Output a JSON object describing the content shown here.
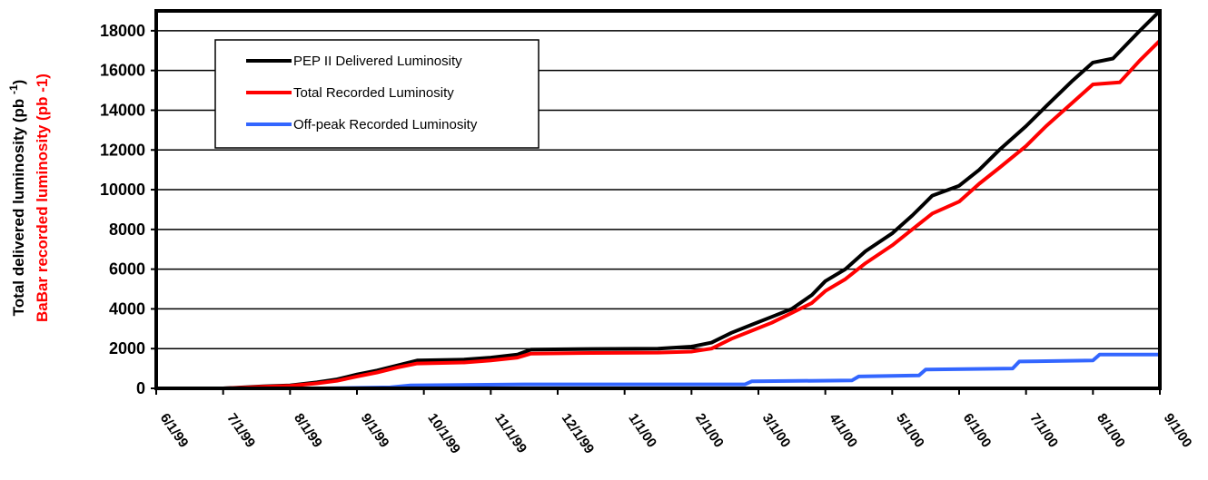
{
  "chart_data": {
    "type": "line",
    "title": "",
    "ylabel_lines": [
      {
        "text": "Total delivered  luminosity (pb",
        "superscript": "-1",
        "close": ")",
        "color": "#000000"
      },
      {
        "text": "BaBar recorded luminosity (pb -1)",
        "color": "#ff0000"
      }
    ],
    "xlabel": "",
    "x_ticks": [
      "6/1/99",
      "7/1/99",
      "8/1/99",
      "9/1/99",
      "10/1/99",
      "11/1/99",
      "12/1/99",
      "1/1/00",
      "2/1/00",
      "3/1/00",
      "4/1/00",
      "5/1/00",
      "6/1/00",
      "7/1/00",
      "8/1/00",
      "9/1/00"
    ],
    "y_ticks": [
      0,
      2000,
      4000,
      6000,
      8000,
      10000,
      12000,
      14000,
      16000,
      18000
    ],
    "ylim": [
      0,
      19000
    ],
    "xlim_months": [
      0,
      15
    ],
    "grid": "horizontal",
    "legend_position": "top-left",
    "series": [
      {
        "name": "PEP II Delivered Luminosity",
        "color": "#000000",
        "points": [
          [
            0.3,
            0
          ],
          [
            1,
            0
          ],
          [
            1.3,
            50
          ],
          [
            1.6,
            100
          ],
          [
            2,
            150
          ],
          [
            2.4,
            300
          ],
          [
            2.7,
            450
          ],
          [
            3,
            700
          ],
          [
            3.3,
            900
          ],
          [
            3.6,
            1150
          ],
          [
            3.9,
            1400
          ],
          [
            4.6,
            1450
          ],
          [
            5,
            1550
          ],
          [
            5.4,
            1700
          ],
          [
            5.6,
            1950
          ],
          [
            6.5,
            1980
          ],
          [
            7.5,
            2000
          ],
          [
            8,
            2100
          ],
          [
            8.3,
            2300
          ],
          [
            8.6,
            2800
          ],
          [
            8.9,
            3200
          ],
          [
            9.2,
            3600
          ],
          [
            9.5,
            4000
          ],
          [
            9.8,
            4700
          ],
          [
            10,
            5400
          ],
          [
            10.3,
            6000
          ],
          [
            10.6,
            6900
          ],
          [
            11,
            7800
          ],
          [
            11.3,
            8700
          ],
          [
            11.6,
            9700
          ],
          [
            12,
            10200
          ],
          [
            12.3,
            11000
          ],
          [
            12.6,
            12000
          ],
          [
            13,
            13200
          ],
          [
            13.3,
            14200
          ],
          [
            13.7,
            15500
          ],
          [
            14,
            16400
          ],
          [
            14.3,
            16600
          ],
          [
            14.7,
            18000
          ],
          [
            15,
            19000
          ]
        ]
      },
      {
        "name": "Total Recorded Luminosity",
        "color": "#ff0000",
        "points": [
          [
            0.3,
            0
          ],
          [
            1,
            0
          ],
          [
            1.3,
            30
          ],
          [
            1.6,
            80
          ],
          [
            2,
            130
          ],
          [
            2.4,
            250
          ],
          [
            2.7,
            380
          ],
          [
            3,
            600
          ],
          [
            3.3,
            800
          ],
          [
            3.6,
            1050
          ],
          [
            3.9,
            1250
          ],
          [
            4.6,
            1300
          ],
          [
            5,
            1400
          ],
          [
            5.4,
            1550
          ],
          [
            5.6,
            1750
          ],
          [
            6.5,
            1780
          ],
          [
            7.5,
            1800
          ],
          [
            8,
            1850
          ],
          [
            8.3,
            2000
          ],
          [
            8.6,
            2500
          ],
          [
            8.9,
            2900
          ],
          [
            9.2,
            3300
          ],
          [
            9.5,
            3800
          ],
          [
            9.8,
            4300
          ],
          [
            10,
            4900
          ],
          [
            10.3,
            5500
          ],
          [
            10.6,
            6300
          ],
          [
            11,
            7200
          ],
          [
            11.3,
            8000
          ],
          [
            11.6,
            8800
          ],
          [
            12,
            9400
          ],
          [
            12.3,
            10300
          ],
          [
            12.6,
            11100
          ],
          [
            13,
            12200
          ],
          [
            13.3,
            13200
          ],
          [
            13.7,
            14400
          ],
          [
            14,
            15300
          ],
          [
            14.4,
            15400
          ],
          [
            14.7,
            16500
          ],
          [
            15,
            17500
          ]
        ]
      },
      {
        "name": "Off-peak Recorded Luminosity",
        "color": "#3366ff",
        "points": [
          [
            0.3,
            0
          ],
          [
            2.5,
            0
          ],
          [
            3.5,
            50
          ],
          [
            3.8,
            150
          ],
          [
            5.5,
            200
          ],
          [
            7,
            200
          ],
          [
            8.8,
            200
          ],
          [
            8.9,
            350
          ],
          [
            10.4,
            400
          ],
          [
            10.5,
            600
          ],
          [
            11.4,
            650
          ],
          [
            11.5,
            950
          ],
          [
            12.8,
            1000
          ],
          [
            12.9,
            1350
          ],
          [
            14,
            1400
          ],
          [
            14.1,
            1700
          ],
          [
            15,
            1700
          ]
        ]
      }
    ]
  }
}
